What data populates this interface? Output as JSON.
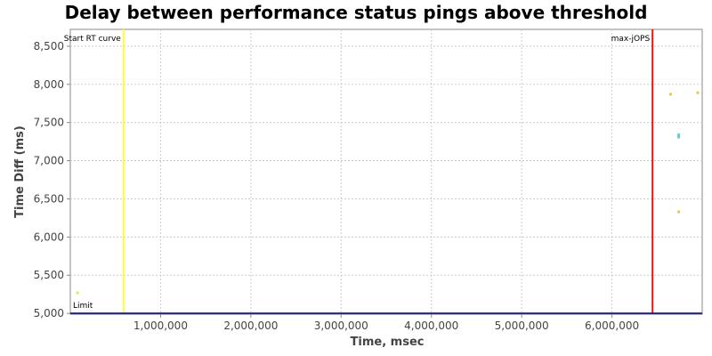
{
  "chart_data": {
    "type": "scatter",
    "title": "Delay between performance status pings above threshold",
    "xlabel": "Time, msec",
    "ylabel": "Time Diff (ms)",
    "xlim": [
      0,
      7000000
    ],
    "ylim": [
      4990,
      8720
    ],
    "x_ticks": [
      1000000,
      2000000,
      3000000,
      4000000,
      5000000,
      6000000
    ],
    "x_tick_labels": [
      "1,000,000",
      "2,000,000",
      "3,000,000",
      "4,000,000",
      "5,000,000",
      "6,000,000"
    ],
    "y_ticks": [
      5000,
      5500,
      6000,
      6500,
      7000,
      7500,
      8000,
      8500
    ],
    "y_tick_labels": [
      "5,000",
      "5,500",
      "6,000",
      "6,500",
      "7,000",
      "7,500",
      "8,000",
      "8,500"
    ],
    "grid": true,
    "points": [
      {
        "x": 80000,
        "y": 5270,
        "color": "#e6e64c"
      },
      {
        "x": 6650000,
        "y": 7870,
        "color": "#e6c84c"
      },
      {
        "x": 6950000,
        "y": 7890,
        "color": "#e6c84c"
      },
      {
        "x": 6740000,
        "y": 7340,
        "color": "#66cccc"
      },
      {
        "x": 6740000,
        "y": 7310,
        "color": "#66cccc"
      },
      {
        "x": 6740000,
        "y": 6330,
        "color": "#e6c84c"
      }
    ],
    "markers": [
      {
        "label": "Start RT curve",
        "x": 590000,
        "color": "#ffff33",
        "orientation": "vertical"
      },
      {
        "label": "max-jOPS",
        "x": 6450000,
        "color": "#ee1111",
        "orientation": "vertical"
      },
      {
        "label": "Limit",
        "y": 5000,
        "color": "#22228a",
        "orientation": "horizontal"
      }
    ]
  }
}
